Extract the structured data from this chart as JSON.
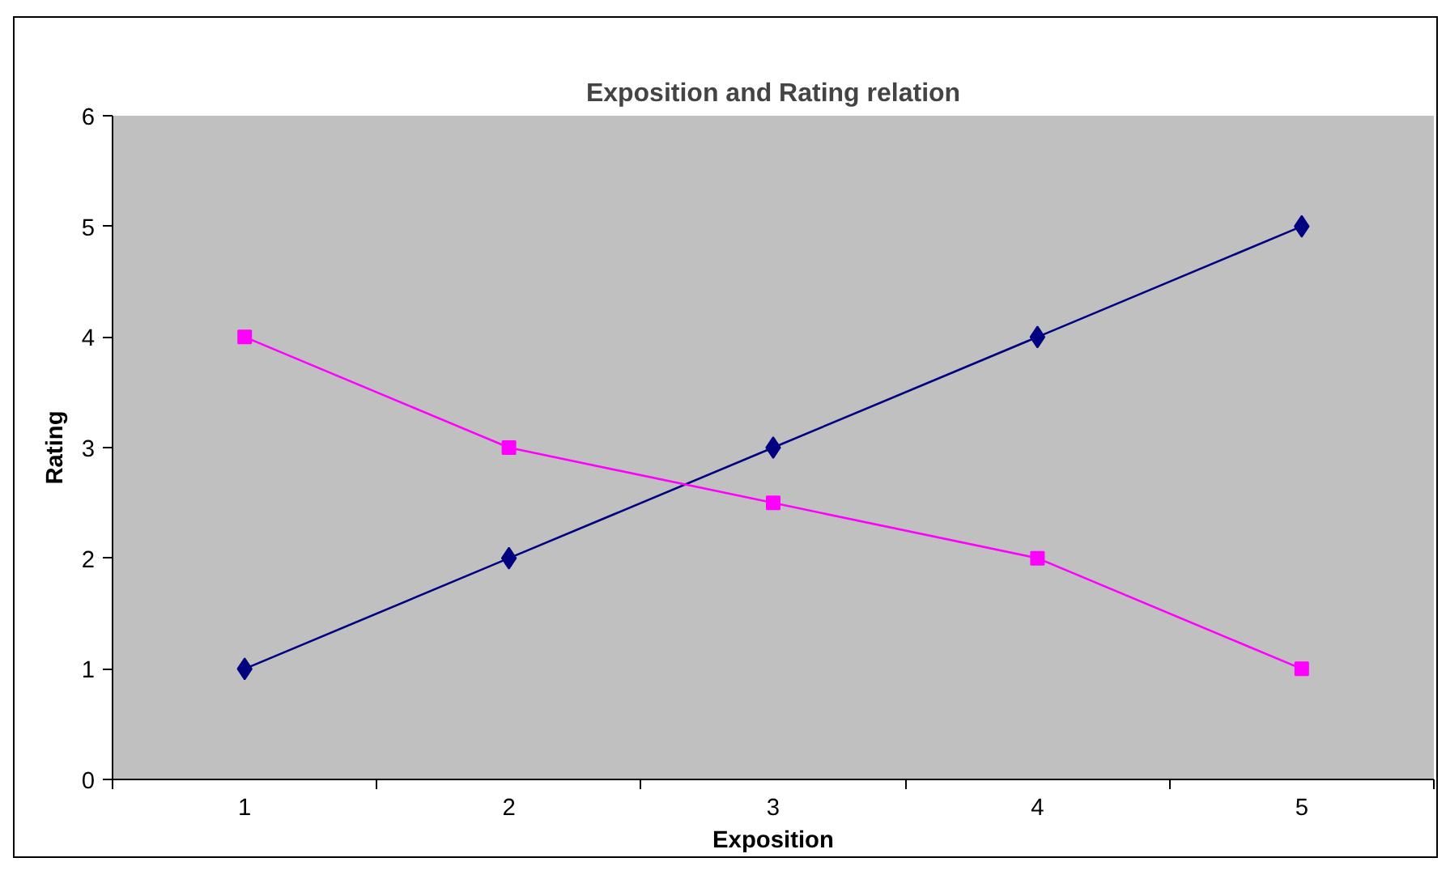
{
  "chart_data": {
    "type": "line",
    "title": "Exposition and Rating relation",
    "xlabel": "Exposition",
    "ylabel": "Rating",
    "categories": [
      "1",
      "2",
      "3",
      "4",
      "5"
    ],
    "series": [
      {
        "color": "#000080",
        "marker": "diamond",
        "values": [
          1,
          2,
          3,
          4,
          5
        ]
      },
      {
        "color": "#ff00ff",
        "marker": "square",
        "values": [
          4,
          3,
          2.5,
          2,
          1
        ]
      }
    ],
    "ylim": [
      0,
      6
    ],
    "yticks": [
      0,
      1,
      2,
      3,
      4,
      5,
      6
    ],
    "grid": false,
    "line_style": "solid"
  }
}
